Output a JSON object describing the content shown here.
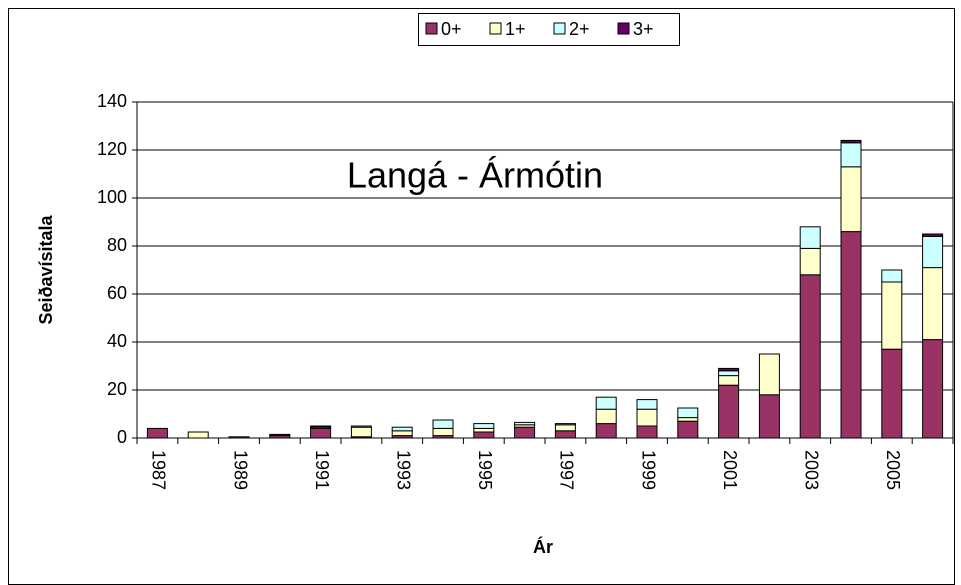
{
  "chart_data": {
    "type": "stacked_bar",
    "title": "Langá - Ármótin",
    "x_label": "Ár",
    "y_label": "Seiðavísitala",
    "categories": [
      "1987",
      null,
      "1989",
      null,
      "1991",
      null,
      "1993",
      null,
      "1995",
      null,
      "1997",
      null,
      "1999",
      null,
      "2001",
      null,
      "2003",
      null,
      "2005",
      null
    ],
    "series": [
      {
        "name": "0+",
        "color": "#993366",
        "values": [
          4,
          0,
          0.5,
          1,
          4,
          0.5,
          1,
          1,
          2.5,
          4.5,
          3,
          6,
          5,
          7,
          22,
          18,
          68,
          86,
          37,
          41
        ]
      },
      {
        "name": "1+",
        "color": "#ffffcc",
        "values": [
          0,
          2.5,
          0,
          0,
          0.5,
          4,
          2,
          3,
          1.5,
          1,
          2.5,
          6,
          7,
          1.5,
          4,
          17,
          11,
          27,
          28,
          30
        ]
      },
      {
        "name": "2+",
        "color": "#ccffff",
        "values": [
          0,
          0,
          0,
          0,
          0,
          0.5,
          1.5,
          3.5,
          2,
          1,
          0.5,
          5,
          4,
          4,
          2,
          0,
          9,
          10,
          5,
          13
        ]
      },
      {
        "name": "3+",
        "color": "#660066",
        "values": [
          0,
          0,
          0,
          0.5,
          0.5,
          0,
          0,
          0,
          0,
          0,
          0,
          0,
          0,
          0,
          1,
          0,
          0,
          1,
          0,
          1
        ]
      }
    ],
    "ylim": [
      0,
      140
    ],
    "yticks": [
      0,
      20,
      40,
      60,
      80,
      100,
      120,
      140
    ],
    "grid": true,
    "legend": "top"
  }
}
